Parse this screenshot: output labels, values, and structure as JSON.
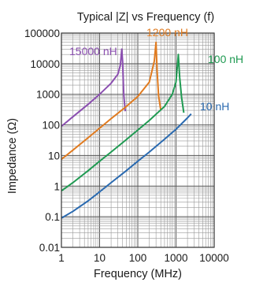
{
  "chart_data": {
    "type": "line",
    "title": "Typical |Z| vs Frequency (f)",
    "xlabel": "Frequency (MHz)",
    "ylabel": "Impedance (Ω)",
    "x_scale": "log",
    "y_scale": "log",
    "xlim": [
      1,
      10000
    ],
    "ylim": [
      0.01,
      100000
    ],
    "x_ticks": [
      "1",
      "10",
      "100",
      "1000",
      "10000"
    ],
    "y_ticks": [
      "0.01",
      "0.1",
      "1",
      "10",
      "100",
      "1000",
      "10000",
      "100000"
    ],
    "grid": true,
    "series": [
      {
        "name": "15000 nH",
        "color": "#8b4fb0",
        "x": [
          1,
          2,
          5,
          10,
          20,
          30,
          35,
          38,
          40,
          43,
          47
        ],
        "y": [
          90,
          185,
          470,
          1000,
          2300,
          4500,
          9000,
          30000,
          12000,
          900,
          280
        ]
      },
      {
        "name": "1200 nH",
        "color": "#e07b20",
        "x": [
          1,
          2,
          5,
          10,
          20,
          50,
          100,
          200,
          270,
          300,
          320,
          350,
          400
        ],
        "y": [
          7.5,
          15,
          38,
          78,
          160,
          400,
          850,
          2500,
          12000,
          50000,
          6000,
          900,
          300
        ]
      },
      {
        "name": "100 nH",
        "color": "#1f9a52",
        "x": [
          1,
          2,
          5,
          10,
          20,
          50,
          100,
          200,
          500,
          800,
          1000,
          1150,
          1250,
          1400,
          1600
        ],
        "y": [
          0.7,
          1.3,
          3.2,
          6.5,
          13,
          33,
          68,
          140,
          400,
          1000,
          2500,
          20000,
          3500,
          800,
          250
        ]
      },
      {
        "name": "10 nH",
        "color": "#2a6ab0",
        "x": [
          1,
          2,
          5,
          10,
          20,
          50,
          100,
          200,
          500,
          1000,
          2000,
          2500
        ],
        "y": [
          0.09,
          0.15,
          0.33,
          0.65,
          1.3,
          3.2,
          6.5,
          13,
          34,
          72,
          170,
          230
        ]
      }
    ]
  }
}
